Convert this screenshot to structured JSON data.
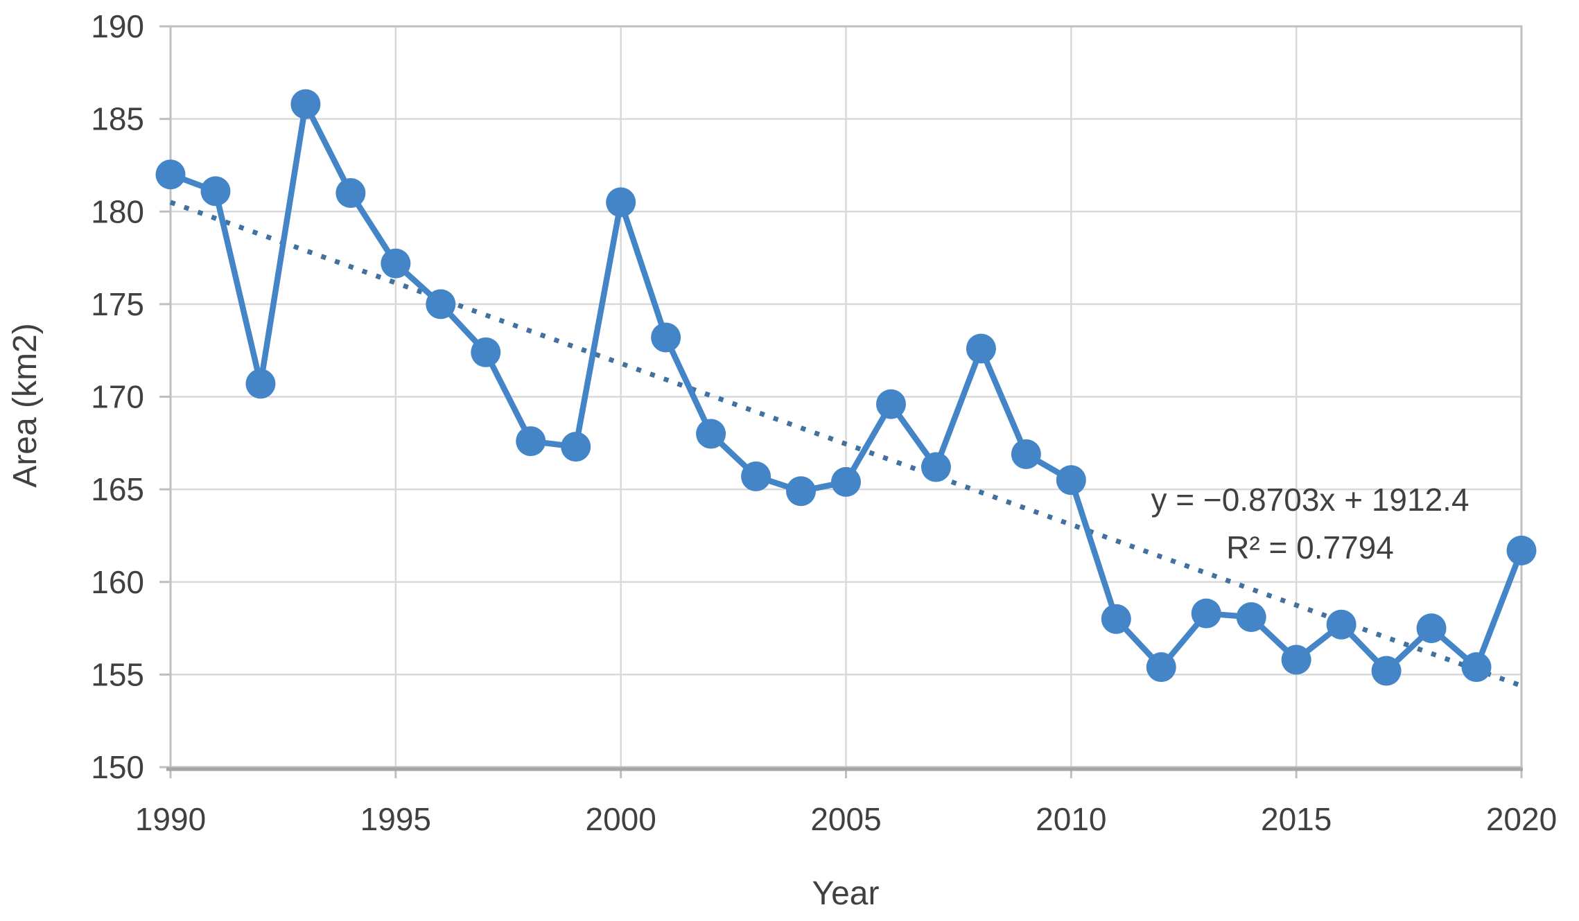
{
  "chart_data": {
    "type": "line",
    "title": "",
    "xlabel": "Year",
    "ylabel": "Area (km2)",
    "xlim": [
      1990,
      2020
    ],
    "ylim": [
      150,
      190
    ],
    "x_ticks": [
      1990,
      1995,
      2000,
      2005,
      2010,
      2015,
      2020
    ],
    "y_ticks": [
      150,
      155,
      160,
      165,
      170,
      175,
      180,
      185,
      190
    ],
    "grid": true,
    "legend_position": "none",
    "x": [
      1990,
      1991,
      1992,
      1993,
      1994,
      1995,
      1996,
      1997,
      1998,
      1999,
      2000,
      2001,
      2002,
      2003,
      2004,
      2005,
      2006,
      2007,
      2008,
      2009,
      2010,
      2011,
      2012,
      2013,
      2014,
      2015,
      2016,
      2017,
      2018,
      2019,
      2020
    ],
    "series": [
      {
        "name": "Area",
        "color": "#4485C8",
        "marker": "circle",
        "values": [
          182.0,
          181.1,
          170.7,
          185.8,
          181.0,
          177.2,
          175.0,
          172.4,
          167.6,
          167.3,
          180.5,
          173.2,
          168.0,
          165.7,
          164.9,
          165.4,
          169.6,
          166.2,
          172.6,
          166.9,
          165.5,
          158.0,
          155.4,
          158.3,
          158.1,
          155.8,
          157.7,
          155.2,
          157.5,
          155.4,
          161.7
        ]
      }
    ],
    "trendline": {
      "slope": -0.8703,
      "intercept": 1912.4,
      "r_squared": 0.7794,
      "equation_label": "y = −0.8703x + 1912.4",
      "r_squared_label": "R² = 0.7794",
      "color": "#41719C",
      "style": "dotted"
    },
    "style_colors": {
      "gridline": "#D9D9D9",
      "plot_border": "#BFBFBF",
      "bottom_axis": "#A6A6A6",
      "text": "#404040"
    }
  }
}
